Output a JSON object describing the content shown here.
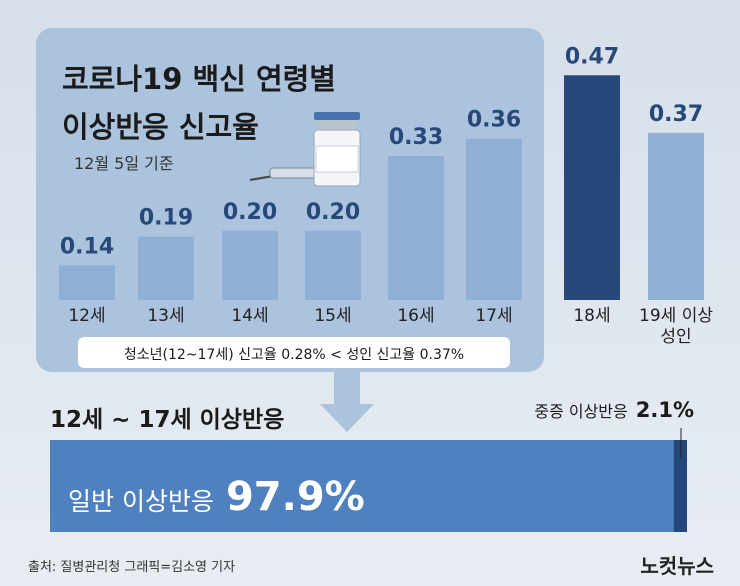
{
  "chart_data": [
    {
      "type": "bar",
      "title": "코로나19 백신 연령별",
      "subtitle": "이상반응 신고율",
      "date_note": "12월 5일 기준",
      "categories": [
        "12세",
        "13세",
        "14세",
        "15세",
        "16세",
        "17세",
        "18세",
        "19세 이상성인"
      ],
      "values": [
        0.14,
        0.19,
        0.2,
        0.2,
        0.33,
        0.36,
        0.47,
        0.37
      ],
      "value_labels": [
        "0.14",
        "0.19",
        "0.20",
        "0.20",
        "0.33",
        "0.36",
        "0.47",
        "0.37"
      ],
      "colors": [
        "#8fb0d4",
        "#8fb0d4",
        "#8fb0d4",
        "#8fb0d4",
        "#8fb0d4",
        "#8fb0d4",
        "#27497a",
        "#8fb0d4"
      ],
      "ylim": [
        0.08,
        0.5
      ],
      "annotation": "청소년(12~17세) 신고율 0.28% < 성인 신고율 0.37%"
    },
    {
      "type": "stacked-hbar",
      "title": "12세 ~ 17세 이상반응",
      "series": [
        {
          "name": "일반 이상반응",
          "color": "#4f80bf",
          "values": [
            97.9
          ],
          "value_labels": [
            "97.9%"
          ]
        },
        {
          "name": "중증 이상반응",
          "color": "#24477a",
          "values": [
            2.1
          ],
          "value_labels": [
            "2.1%"
          ]
        }
      ],
      "xlim": [
        0,
        100
      ]
    }
  ],
  "footer": {
    "source": "출처: 질병관리청  그래픽=김소영 기자",
    "logo": "노컷뉴스"
  }
}
